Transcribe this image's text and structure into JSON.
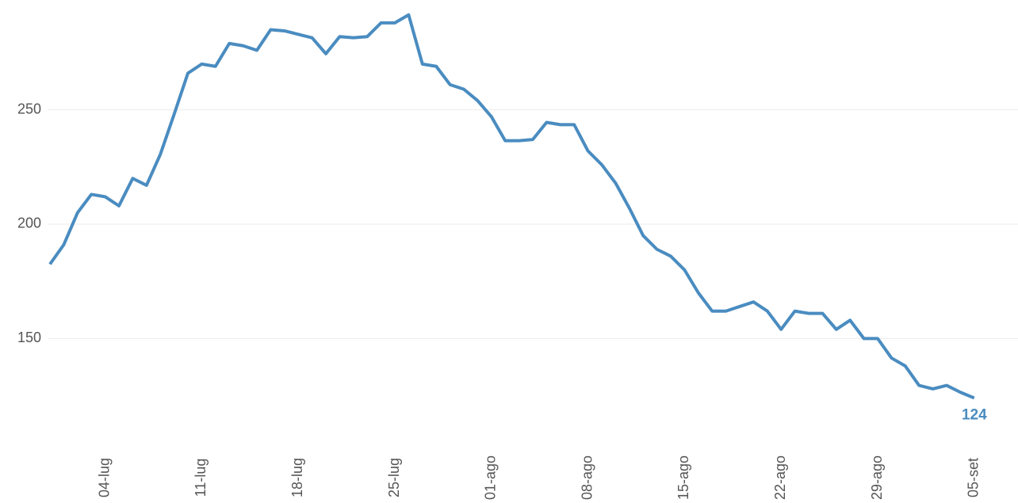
{
  "chart_data": {
    "type": "line",
    "categories": [
      null,
      null,
      null,
      null,
      "04-lug",
      null,
      null,
      null,
      null,
      null,
      null,
      "11-lug",
      null,
      null,
      null,
      null,
      null,
      null,
      "18-lug",
      null,
      null,
      null,
      null,
      null,
      null,
      "25-lug",
      null,
      null,
      null,
      null,
      null,
      null,
      "01-ago",
      null,
      null,
      null,
      null,
      null,
      null,
      "08-ago",
      null,
      null,
      null,
      null,
      null,
      null,
      "15-ago",
      null,
      null,
      null,
      null,
      null,
      null,
      "22-ago",
      null,
      null,
      null,
      null,
      null,
      null,
      "29-ago",
      null,
      null,
      null,
      null,
      null,
      null,
      "05-set"
    ],
    "values": [
      182.5,
      191,
      205,
      213,
      212,
      208,
      220,
      217,
      230.5,
      248,
      266,
      270,
      269,
      279,
      278,
      276,
      285,
      284.5,
      283,
      281.5,
      274.5,
      282,
      281.5,
      282,
      288,
      288,
      291.5,
      270,
      269,
      261,
      259,
      254,
      247,
      236.5,
      236.5,
      237,
      244.5,
      243.5,
      243.5,
      232,
      226,
      218,
      207,
      195,
      189,
      186,
      180,
      170,
      162,
      162,
      164,
      166,
      162,
      154,
      162,
      161,
      161,
      154,
      158,
      150,
      150,
      141.5,
      138,
      129.5,
      128,
      129.5,
      126.5,
      124
    ],
    "color": "#4a8cc0",
    "ylim": [
      111,
      298
    ],
    "yticks": [
      150,
      200,
      250
    ],
    "grid": true
  }
}
